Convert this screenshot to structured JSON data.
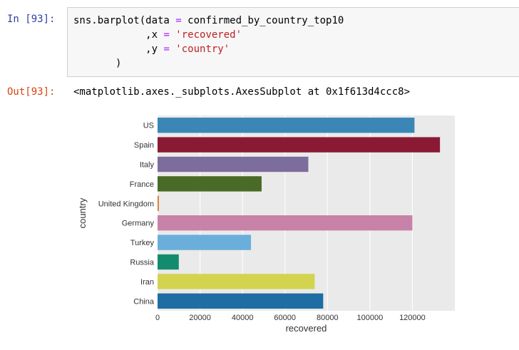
{
  "cell": {
    "in_prompt": "In [93]:",
    "out_prompt": "Out[93]:",
    "code": {
      "l1_name": "sns.barplot(data ",
      "l1_op": "=",
      "l1_rest": " confirmed_by_country_top10",
      "l2_pre": "            ,x ",
      "l2_op": "=",
      "l2_str": " 'recovered'",
      "l3_pre": "            ,y ",
      "l3_op": "=",
      "l3_str": " 'country'",
      "l4": "       )"
    },
    "output_repr": "<matplotlib.axes._subplots.AxesSubplot at 0x1f613d4ccc8>"
  },
  "chart_data": {
    "type": "bar",
    "orientation": "horizontal",
    "xlabel": "recovered",
    "ylabel": "country",
    "xlim": [
      0,
      140000
    ],
    "xticks": [
      0,
      20000,
      40000,
      60000,
      80000,
      100000,
      120000
    ],
    "xtick_labels": [
      "0",
      "20000",
      "40000",
      "60000",
      "80000",
      "100000",
      "120000"
    ],
    "grid": true,
    "categories": [
      "US",
      "Spain",
      "Italy",
      "France",
      "United Kingdom",
      "Germany",
      "Turkey",
      "Russia",
      "Iran",
      "China"
    ],
    "values": [
      121000,
      133000,
      71000,
      49000,
      600,
      120000,
      44000,
      10000,
      74000,
      78000
    ],
    "colors": [
      "#3a87b7",
      "#8a1a34",
      "#7d6d9d",
      "#4a6b28",
      "#d07a34",
      "#c882a8",
      "#6aafdb",
      "#138c6e",
      "#d4d350",
      "#1e6da3"
    ],
    "background": "#eaeaea"
  }
}
